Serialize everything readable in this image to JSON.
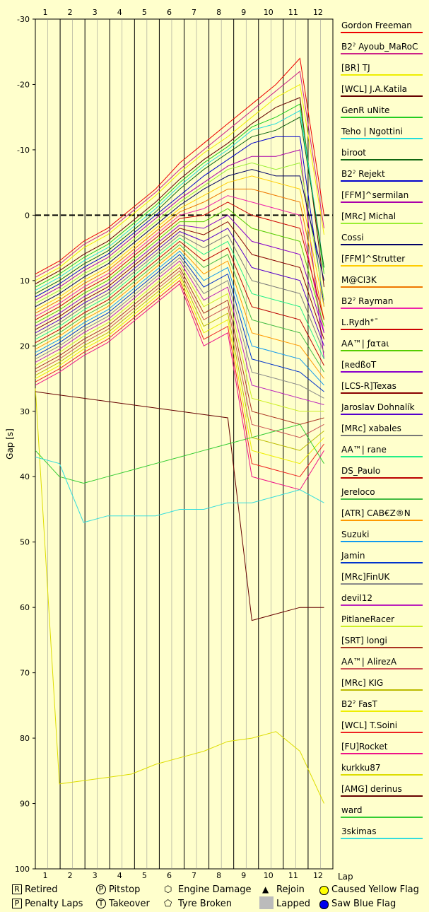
{
  "chart_data": {
    "type": "line",
    "xlabel": "Lap",
    "ylabel": "Gap [s]",
    "x": [
      0,
      1,
      2,
      3,
      4,
      5,
      6,
      7,
      8,
      9,
      10,
      11,
      12
    ],
    "top_ticks": [
      "1",
      "2",
      "3",
      "4",
      "5",
      "6",
      "7",
      "8",
      "9",
      "10",
      "11",
      "12"
    ],
    "bottom_ticks": [
      "1",
      "2",
      "3",
      "4",
      "5",
      "6",
      "7",
      "8",
      "9",
      "10",
      "11",
      "12"
    ],
    "ylim": [
      -30,
      100
    ],
    "y_inverted": true,
    "yticks": [
      "-30",
      "-20",
      "-10",
      "0",
      "10",
      "20",
      "30",
      "40",
      "50",
      "60",
      "70",
      "80",
      "90",
      "100"
    ],
    "zero_line": true,
    "grid": true,
    "legend_position": "right",
    "series": [
      {
        "name": "Gordon Freeman",
        "color": "#ee0000",
        "values": [
          9,
          7,
          4,
          2,
          -1,
          -4,
          -8,
          -11,
          -14,
          -17,
          -20,
          -24,
          0
        ]
      },
      {
        "name": "B2ˀ Ayoub_MaRoC",
        "color": "#cc2288",
        "values": [
          9.5,
          7.5,
          4.5,
          2.5,
          -0.5,
          -3.5,
          -7,
          -10,
          -13,
          -16,
          -19,
          -22,
          2
        ]
      },
      {
        "name": "[BR] TJ",
        "color": "#eeee00",
        "values": [
          10,
          8,
          5,
          3,
          0,
          -3,
          -6.5,
          -9.5,
          -12,
          -15,
          -18,
          -20,
          3
        ]
      },
      {
        "name": "[WCL] J.A.Katila",
        "color": "#660000",
        "values": [
          10.5,
          8.5,
          6,
          4,
          1,
          -2,
          -5.5,
          -8.5,
          -11,
          -14,
          -16.5,
          -18,
          11
        ]
      },
      {
        "name": "GenR uNite",
        "color": "#22cc22",
        "values": [
          11,
          9,
          6.5,
          4.5,
          1.5,
          -1.5,
          -5,
          -8,
          -10.5,
          -13.5,
          -15,
          -17,
          9
        ]
      },
      {
        "name": "Teho | Ngottini",
        "color": "#22dddd",
        "values": [
          11.5,
          9.5,
          7,
          5,
          2,
          -1,
          -4.5,
          -7.5,
          -10,
          -13,
          -14,
          -16,
          8
        ]
      },
      {
        "name": "biroot",
        "color": "#116611",
        "values": [
          12,
          10,
          7.5,
          5.5,
          2.5,
          -0.5,
          -4,
          -7,
          -9.5,
          -12,
          -13,
          -15,
          8
        ]
      },
      {
        "name": "B2ˀ Rejekt",
        "color": "#0000cc",
        "values": [
          12.5,
          10.5,
          8,
          6,
          3,
          0,
          -3,
          -6,
          -8.5,
          -11,
          -12,
          -12,
          14
        ]
      },
      {
        "name": "[FFM]^sermilan",
        "color": "#aa00aa",
        "values": [
          13,
          11,
          8.5,
          6.5,
          3.5,
          0.5,
          -2.5,
          -5,
          -7.5,
          -9,
          -9,
          -10,
          22
        ]
      },
      {
        "name": "[MRc] Michal",
        "color": "#99ee33",
        "values": [
          13.5,
          11.5,
          9,
          7,
          4,
          1,
          -2,
          -4.5,
          -7,
          -8,
          -7,
          -8,
          13
        ]
      },
      {
        "name": "Cossi",
        "color": "#000066",
        "values": [
          14,
          12,
          9.5,
          7.5,
          4.5,
          1.5,
          -1.5,
          -4,
          -6,
          -7,
          -6,
          -6,
          10
        ]
      },
      {
        "name": "[FFM]^Strutter",
        "color": "#ffcc00",
        "values": [
          14.5,
          12.5,
          10,
          8,
          5,
          2,
          -1,
          -3,
          -5,
          -6,
          -5,
          -4,
          14
        ]
      },
      {
        "name": "M@CI3K",
        "color": "#ee7700",
        "values": [
          15,
          13,
          10.5,
          8.5,
          5.5,
          2.5,
          -0.5,
          -2,
          -4,
          -4,
          -3,
          -2,
          16
        ]
      },
      {
        "name": "B2ˀ Rayman",
        "color": "#ee22aa",
        "values": [
          15.5,
          13.5,
          11,
          9,
          6,
          3,
          0,
          -1,
          -3,
          -2,
          -1,
          0,
          18
        ]
      },
      {
        "name": "L.Rydh°¯",
        "color": "#cc0000",
        "values": [
          16,
          14,
          11.5,
          9.5,
          6.5,
          3.5,
          0.5,
          0,
          -2,
          0,
          1,
          2,
          16
        ]
      },
      {
        "name": "AA™| ƒατaι",
        "color": "#55cc00",
        "values": [
          16.5,
          14.5,
          12,
          10,
          7,
          4,
          1,
          1,
          -1,
          2,
          3,
          4,
          17
        ]
      },
      {
        "name": "[ʀedßoT",
        "color": "#8800cc",
        "values": [
          17,
          15,
          12.5,
          10.5,
          7.5,
          4.5,
          1.5,
          2,
          0,
          4,
          5,
          6,
          18
        ]
      },
      {
        "name": "[LCS-R]Texas",
        "color": "#880000",
        "values": [
          17.5,
          15.5,
          13,
          11,
          8,
          5,
          2,
          3,
          1,
          6,
          7,
          8,
          19
        ]
      },
      {
        "name": "Jaroslav Dohnalík",
        "color": "#5500cc",
        "values": [
          18,
          16,
          13.5,
          11.5,
          8.5,
          5.5,
          2.5,
          4,
          2,
          8,
          9,
          10,
          20
        ]
      },
      {
        "name": "[MRc] xabales",
        "color": "#777777",
        "values": [
          18.5,
          16.5,
          14,
          12,
          9,
          6,
          3,
          5,
          3,
          10,
          11,
          12,
          21
        ]
      },
      {
        "name": "AA™| rane",
        "color": "#22ee88",
        "values": [
          19,
          17,
          14.5,
          12.5,
          9.5,
          6.5,
          3.5,
          6,
          4,
          12,
          13,
          14,
          22
        ]
      },
      {
        "name": "DS_Paulo",
        "color": "#bb0000",
        "values": [
          19.5,
          17.5,
          15,
          13,
          10,
          7,
          4,
          7,
          5,
          14,
          15,
          16,
          23
        ]
      },
      {
        "name": "Jereloco",
        "color": "#44bb44",
        "values": [
          20,
          18,
          15.5,
          13.5,
          10.5,
          7.5,
          4.5,
          8,
          6,
          16,
          17,
          18,
          24
        ]
      },
      {
        "name": "[ATR] CAB€Z®N",
        "color": "#ff9900",
        "values": [
          20.5,
          18.5,
          16,
          14,
          11,
          8,
          5,
          9,
          7,
          18,
          19,
          20,
          25
        ]
      },
      {
        "name": "Suzuki",
        "color": "#1199ee",
        "values": [
          21,
          19,
          16.5,
          14.5,
          11.5,
          8.5,
          5.5,
          10,
          8,
          20,
          21,
          22,
          26
        ]
      },
      {
        "name": "Jamin",
        "color": "#0033cc",
        "values": [
          21.5,
          19.5,
          17,
          15,
          12,
          9,
          6,
          11,
          9,
          22,
          23,
          24,
          27
        ]
      },
      {
        "name": "[MRc]FinUK",
        "color": "#888888",
        "values": [
          22,
          20,
          17.5,
          15.5,
          12.5,
          9.5,
          6.5,
          12,
          10,
          24,
          25,
          26,
          28
        ]
      },
      {
        "name": "devil12",
        "color": "#bb22bb",
        "values": [
          22.5,
          20.5,
          18,
          16,
          13,
          10,
          7,
          13,
          11,
          26,
          27,
          28,
          29
        ]
      },
      {
        "name": "PitlaneRacer",
        "color": "#ccee22",
        "values": [
          23,
          21,
          18.5,
          16.5,
          13.5,
          10.5,
          7.5,
          14,
          12,
          28,
          29,
          30,
          30
        ]
      },
      {
        "name": "[SRT] longi",
        "color": "#aa3322",
        "values": [
          23.5,
          21.5,
          19,
          17,
          14,
          11,
          8,
          15,
          13,
          30,
          31,
          32,
          31
        ]
      },
      {
        "name": "AA™| AlirezA",
        "color": "#cc5555",
        "values": [
          24,
          22,
          19.5,
          17.5,
          14.5,
          11.5,
          8.5,
          16,
          14,
          32,
          33,
          34,
          32
        ]
      },
      {
        "name": "[MRc] KIG",
        "color": "#bbbb00",
        "values": [
          24.5,
          22.5,
          20,
          18,
          15,
          12,
          9,
          17,
          15,
          34,
          35,
          36,
          33
        ]
      },
      {
        "name": "B2ˀ FasT",
        "color": "#eeee00",
        "values": [
          25,
          23,
          20.5,
          18.5,
          15.5,
          12.5,
          9.5,
          18,
          16,
          36,
          37,
          38,
          34
        ]
      },
      {
        "name": "[WCL] T.Soini",
        "color": "#ee2222",
        "values": [
          25.5,
          23.5,
          21,
          19,
          16,
          13,
          10,
          19,
          17,
          38,
          39,
          40,
          35
        ]
      },
      {
        "name": "[FU]Rocket",
        "color": "#ee1188",
        "values": [
          26,
          24,
          21.5,
          19.5,
          16.5,
          13.5,
          10.5,
          20,
          18,
          40,
          41,
          42,
          36
        ]
      },
      {
        "name": "kurkku87",
        "color": "#dddd00",
        "values": [
          26.5,
          87,
          86.5,
          86,
          85.5,
          84,
          83,
          82,
          80.5,
          80,
          79,
          82,
          90
        ]
      },
      {
        "name": "[AMG] derinus",
        "color": "#660000",
        "values": [
          27,
          27.5,
          28,
          28.5,
          29,
          29.5,
          30,
          30.5,
          31,
          62,
          61,
          60,
          60
        ]
      },
      {
        "name": "ward",
        "color": "#33cc33",
        "values": [
          36,
          40,
          41,
          40,
          39,
          38,
          37,
          36,
          35,
          34,
          33,
          32,
          38
        ]
      },
      {
        "name": "3skimas",
        "color": "#33dddd",
        "values": [
          37,
          38,
          47,
          46,
          46,
          46,
          45,
          45,
          44,
          44,
          43,
          42,
          44
        ]
      }
    ],
    "markers_text": [
      "R",
      "P",
      "E"
    ],
    "legend_keys": {
      "retired": "Retired",
      "pitstop": "Pitstop",
      "engine_damage": "Engine Damage",
      "rejoin": "Rejoin",
      "caused_yellow_flag": "Caused Yellow Flag",
      "penalty_laps": "Penalty Laps",
      "takeover": "Takeover",
      "tyre_broken": "Tyre Broken",
      "lapped": "Lapped",
      "saw_blue_flag": "Saw Blue Flag"
    }
  }
}
